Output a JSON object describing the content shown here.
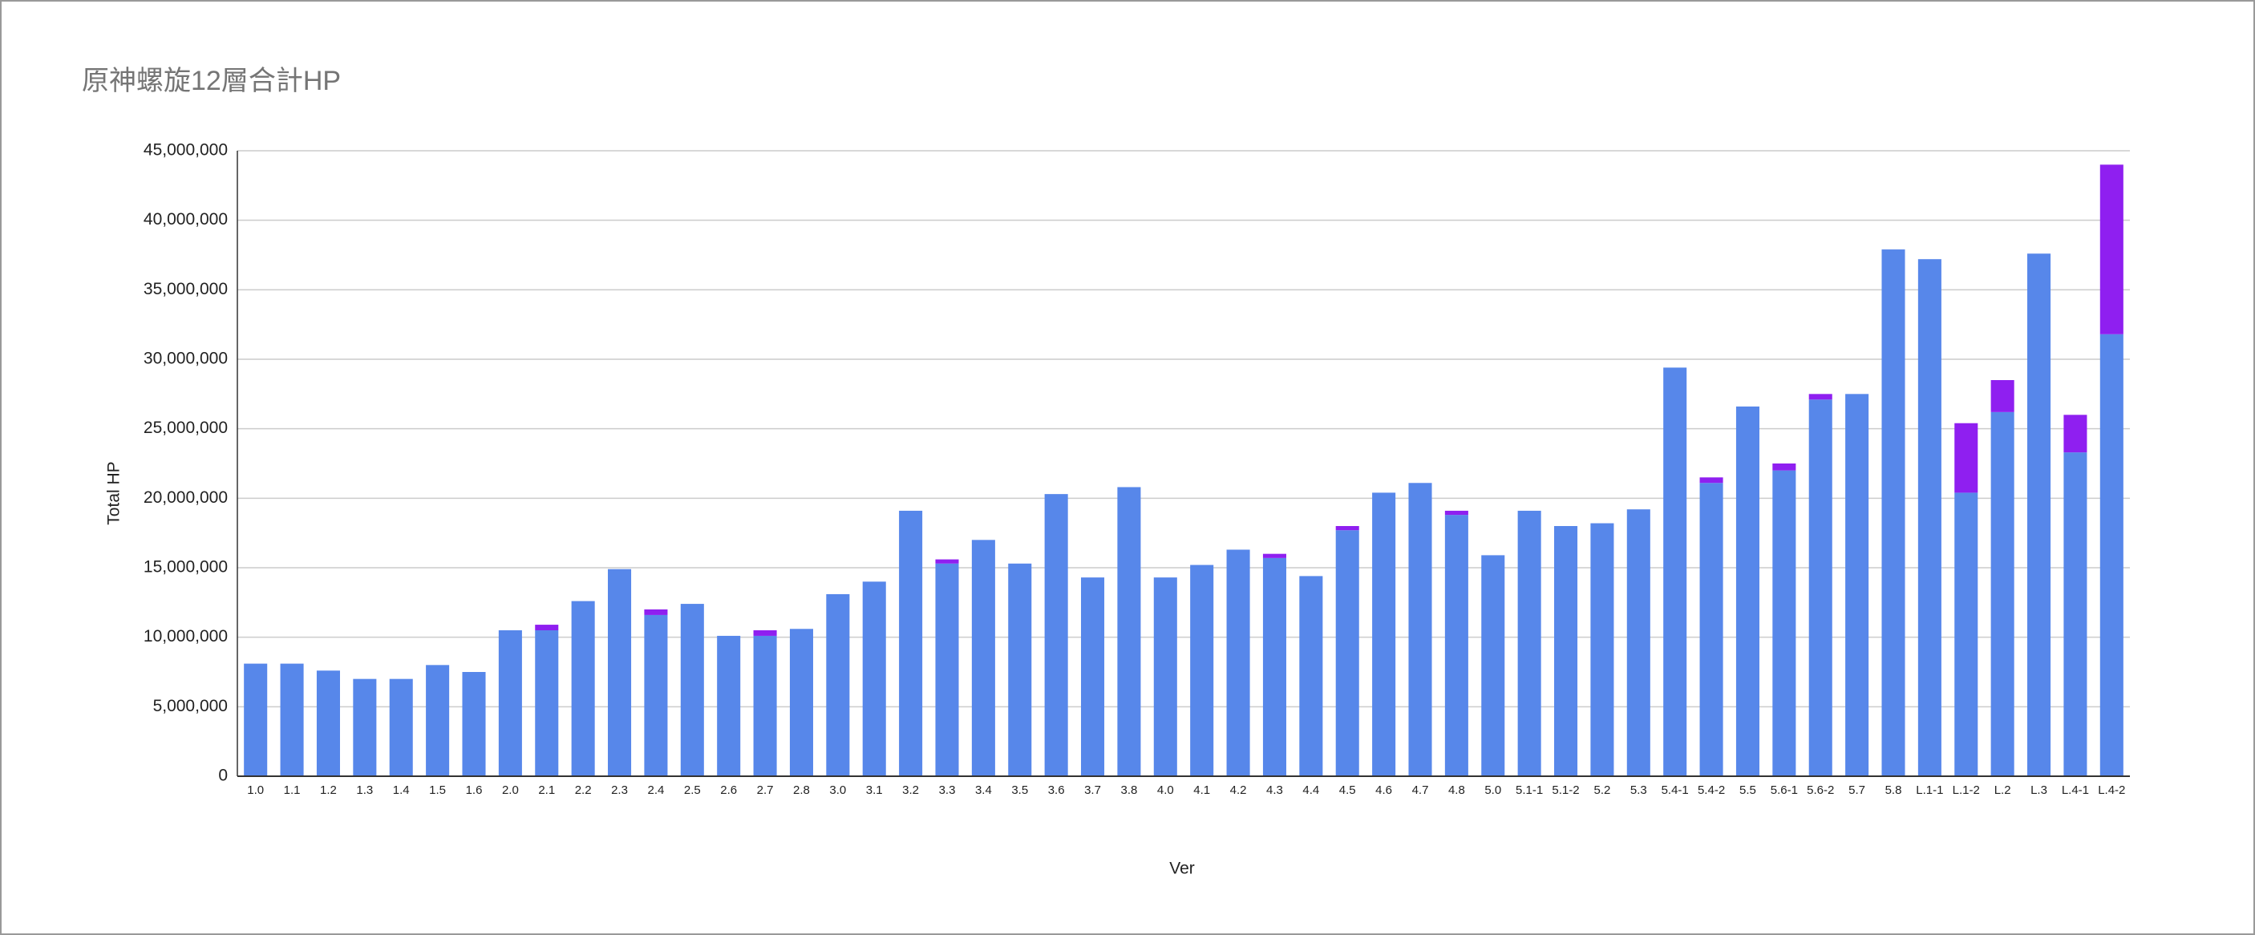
{
  "chart_data": {
    "type": "stacked-bar",
    "title": "原神螺旋12層合計HP",
    "x_label": "Ver",
    "y_label": "Total HP",
    "categories": [
      "1.0",
      "1.1",
      "1.2",
      "1.3",
      "1.4",
      "1.5",
      "1.6",
      "2.0",
      "2.1",
      "2.2",
      "2.3",
      "2.4",
      "2.5",
      "2.6",
      "2.7",
      "2.8",
      "3.0",
      "3.1",
      "3.2",
      "3.3",
      "3.4",
      "3.5",
      "3.6",
      "3.7",
      "3.8",
      "4.0",
      "4.1",
      "4.2",
      "4.3",
      "4.4",
      "4.5",
      "4.6",
      "4.7",
      "4.8",
      "5.0",
      "5.1-1",
      "5.1-2",
      "5.2",
      "5.3",
      "5.4-1",
      "5.4-2",
      "5.5",
      "5.6-1",
      "5.6-2",
      "5.7",
      "5.8",
      "L.1-1",
      "L.1-2",
      "L.2",
      "L.3",
      "L.4-1",
      "L.4-2"
    ],
    "series": [
      {
        "color": "#5787ea",
        "values": [
          8100000,
          8100000,
          7600000,
          7000000,
          7000000,
          8000000,
          7500000,
          10500000,
          10500000,
          12600000,
          14900000,
          11600000,
          12400000,
          10100000,
          10100000,
          10600000,
          13100000,
          14000000,
          19100000,
          15300000,
          17000000,
          15300000,
          20300000,
          14300000,
          20800000,
          14300000,
          15200000,
          16300000,
          15700000,
          14400000,
          17700000,
          20400000,
          21100000,
          18800000,
          15900000,
          19100000,
          18000000,
          18200000,
          19200000,
          29400000,
          21100000,
          26600000,
          22000000,
          27100000,
          27500000,
          37900000,
          37200000,
          20400000,
          26200000,
          37600000,
          23300000,
          31800000
        ]
      },
      {
        "color": "#8f1ff0",
        "values": [
          0,
          0,
          0,
          0,
          0,
          0,
          0,
          0,
          400000,
          0,
          0,
          400000,
          0,
          0,
          400000,
          0,
          0,
          0,
          0,
          300000,
          0,
          0,
          0,
          0,
          0,
          0,
          0,
          0,
          300000,
          0,
          300000,
          0,
          0,
          300000,
          0,
          0,
          0,
          0,
          0,
          0,
          400000,
          0,
          500000,
          400000,
          0,
          0,
          0,
          5000000,
          2300000,
          0,
          2700000,
          12200000
        ]
      }
    ],
    "ylim": [
      0,
      45000000
    ],
    "yticks": [
      0,
      {
        "value": 5000000,
        "label": "5,000,000"
      },
      {
        "value": 10000000,
        "label": "10,000,000"
      },
      {
        "value": 15000000,
        "label": "15,000,000"
      },
      {
        "value": 20000000,
        "label": "20,000,000"
      },
      {
        "value": 25000000,
        "label": "25,000,000"
      },
      {
        "value": 30000000,
        "label": "30,000,000"
      },
      {
        "value": 35000000,
        "label": "35,000,000"
      },
      {
        "value": 40000000,
        "label": "40,000,000"
      },
      {
        "value": 45000000,
        "label": "45,000,000"
      }
    ],
    "grid": true
  }
}
